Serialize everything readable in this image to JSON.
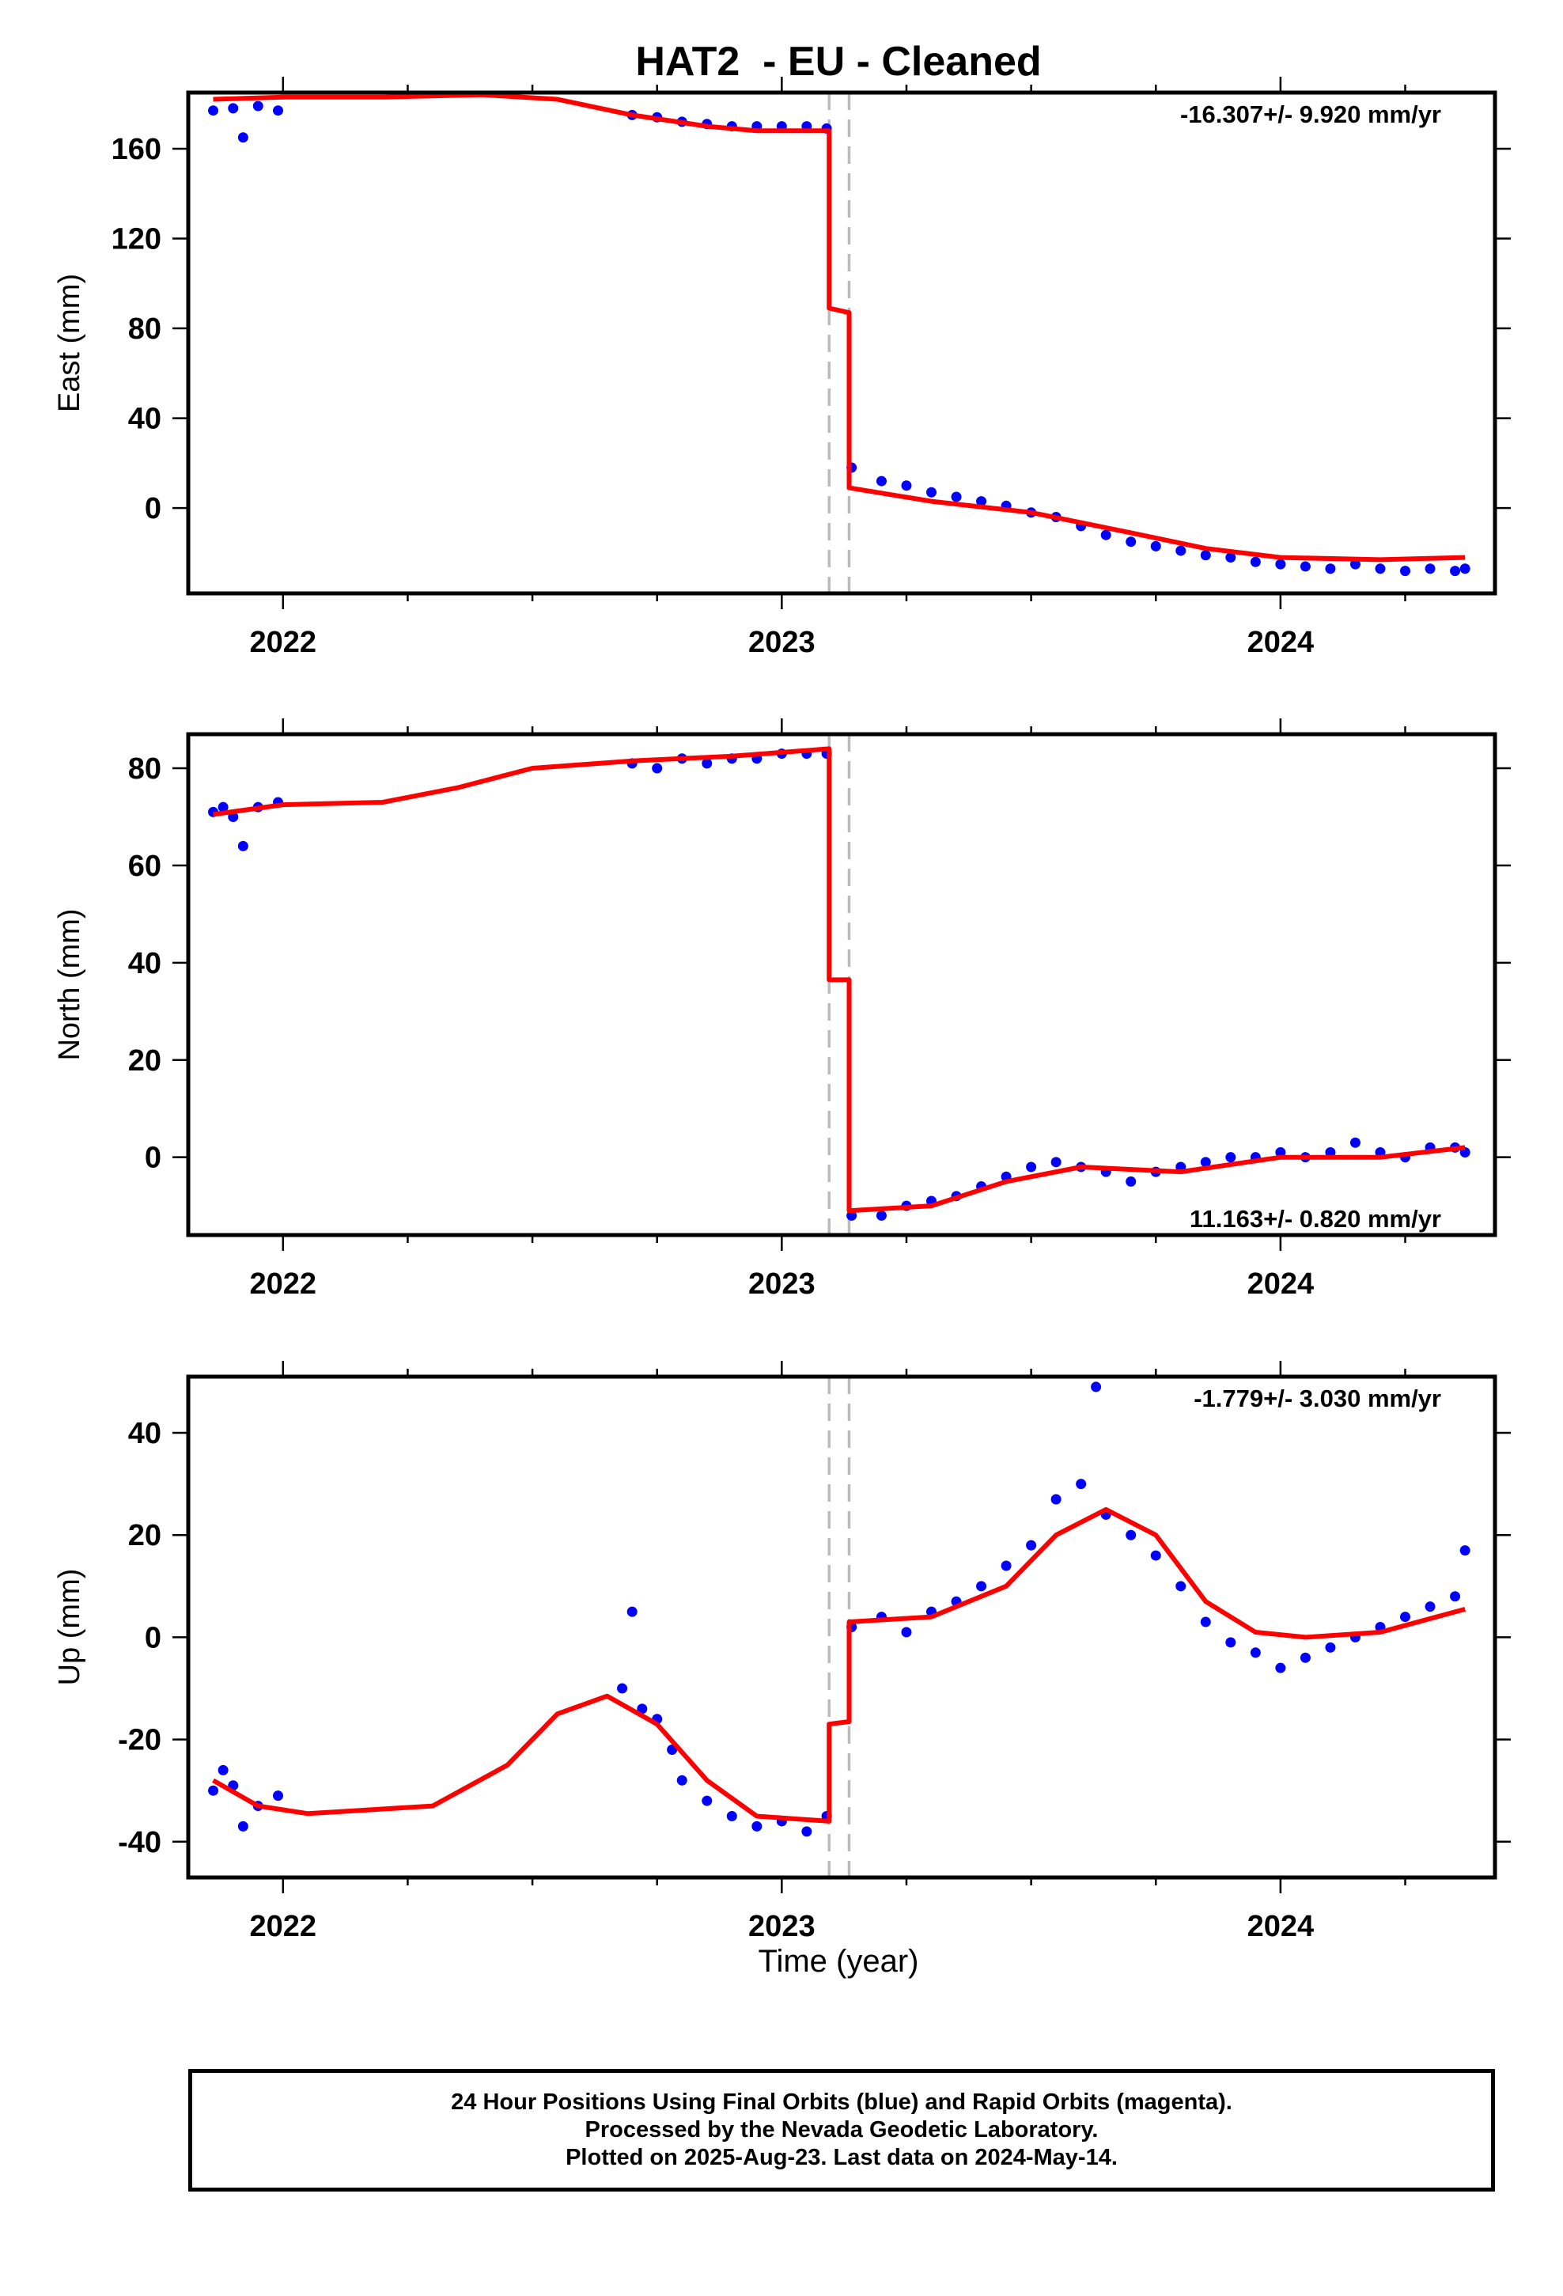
{
  "title": "HAT2  - EU - Cleaned",
  "x_axis_label": "Time (year)",
  "footer": {
    "line1": "24 Hour Positions Using Final Orbits (blue) and Rapid Orbits (magenta).",
    "line2": "Processed by the Nevada Geodetic Laboratory.",
    "line3": "Plotted on 2025-Aug-23. Last data on 2024-May-14."
  },
  "colors": {
    "points": "#0000ff",
    "model": "#ff0000",
    "steps": "#bbbbbb",
    "axes": "#000000"
  },
  "chart_data": [
    {
      "type": "scatter",
      "component": "East",
      "ylabel": "East (mm)",
      "rate_text": "-16.307+/- 9.920 mm/yr",
      "rate_position": "top-right",
      "xlim": [
        2021.81,
        2024.43
      ],
      "ylim": [
        -38,
        185
      ],
      "x_ticks": [
        2022,
        2023,
        2024
      ],
      "y_ticks": [
        0,
        40,
        80,
        120,
        160
      ],
      "step_epochs": [
        2023.095,
        2023.135
      ],
      "grid": false,
      "observations": [
        {
          "x": 2021.86,
          "y": 177
        },
        {
          "x": 2021.9,
          "y": 178
        },
        {
          "x": 2021.92,
          "y": 165
        },
        {
          "x": 2021.95,
          "y": 179
        },
        {
          "x": 2021.99,
          "y": 177
        },
        {
          "x": 2022.7,
          "y": 175
        },
        {
          "x": 2022.75,
          "y": 174
        },
        {
          "x": 2022.8,
          "y": 172
        },
        {
          "x": 2022.85,
          "y": 171
        },
        {
          "x": 2022.9,
          "y": 170
        },
        {
          "x": 2022.95,
          "y": 170
        },
        {
          "x": 2023.0,
          "y": 170
        },
        {
          "x": 2023.05,
          "y": 170
        },
        {
          "x": 2023.09,
          "y": 169
        },
        {
          "x": 2023.14,
          "y": 18
        },
        {
          "x": 2023.2,
          "y": 12
        },
        {
          "x": 2023.25,
          "y": 10
        },
        {
          "x": 2023.3,
          "y": 7
        },
        {
          "x": 2023.35,
          "y": 5
        },
        {
          "x": 2023.4,
          "y": 3
        },
        {
          "x": 2023.45,
          "y": 1
        },
        {
          "x": 2023.5,
          "y": -2
        },
        {
          "x": 2023.55,
          "y": -4
        },
        {
          "x": 2023.6,
          "y": -8
        },
        {
          "x": 2023.65,
          "y": -12
        },
        {
          "x": 2023.7,
          "y": -15
        },
        {
          "x": 2023.75,
          "y": -17
        },
        {
          "x": 2023.8,
          "y": -19
        },
        {
          "x": 2023.85,
          "y": -21
        },
        {
          "x": 2023.9,
          "y": -22
        },
        {
          "x": 2023.95,
          "y": -24
        },
        {
          "x": 2024.0,
          "y": -25
        },
        {
          "x": 2024.05,
          "y": -26
        },
        {
          "x": 2024.1,
          "y": -27
        },
        {
          "x": 2024.15,
          "y": -25
        },
        {
          "x": 2024.2,
          "y": -27
        },
        {
          "x": 2024.25,
          "y": -28
        },
        {
          "x": 2024.3,
          "y": -27
        },
        {
          "x": 2024.35,
          "y": -28
        },
        {
          "x": 2024.37,
          "y": -27
        }
      ],
      "model": [
        {
          "x": 2021.86,
          "y": 182
        },
        {
          "x": 2022.0,
          "y": 183
        },
        {
          "x": 2022.2,
          "y": 183
        },
        {
          "x": 2022.4,
          "y": 184
        },
        {
          "x": 2022.55,
          "y": 182
        },
        {
          "x": 2022.7,
          "y": 175
        },
        {
          "x": 2022.85,
          "y": 170
        },
        {
          "x": 2022.95,
          "y": 168
        },
        {
          "x": 2023.095,
          "y": 168
        },
        {
          "x": 2023.095,
          "y": 89
        },
        {
          "x": 2023.135,
          "y": 87
        },
        {
          "x": 2023.135,
          "y": 9
        },
        {
          "x": 2023.3,
          "y": 3
        },
        {
          "x": 2023.5,
          "y": -2
        },
        {
          "x": 2023.7,
          "y": -11
        },
        {
          "x": 2023.85,
          "y": -18
        },
        {
          "x": 2024.0,
          "y": -22
        },
        {
          "x": 2024.2,
          "y": -23
        },
        {
          "x": 2024.37,
          "y": -22
        }
      ]
    },
    {
      "type": "scatter",
      "component": "North",
      "ylabel": "North (mm)",
      "rate_text": "11.163+/- 0.820 mm/yr",
      "rate_position": "bottom-right",
      "xlim": [
        2021.81,
        2024.43
      ],
      "ylim": [
        -16,
        87
      ],
      "x_ticks": [
        2022,
        2023,
        2024
      ],
      "y_ticks": [
        0,
        20,
        40,
        60,
        80
      ],
      "step_epochs": [
        2023.095,
        2023.135
      ],
      "grid": false,
      "observations": [
        {
          "x": 2021.86,
          "y": 71
        },
        {
          "x": 2021.88,
          "y": 72
        },
        {
          "x": 2021.9,
          "y": 70
        },
        {
          "x": 2021.92,
          "y": 64
        },
        {
          "x": 2021.95,
          "y": 72
        },
        {
          "x": 2021.99,
          "y": 73
        },
        {
          "x": 2022.7,
          "y": 81
        },
        {
          "x": 2022.75,
          "y": 80
        },
        {
          "x": 2022.8,
          "y": 82
        },
        {
          "x": 2022.85,
          "y": 81
        },
        {
          "x": 2022.9,
          "y": 82
        },
        {
          "x": 2022.95,
          "y": 82
        },
        {
          "x": 2023.0,
          "y": 83
        },
        {
          "x": 2023.05,
          "y": 83
        },
        {
          "x": 2023.09,
          "y": 83
        },
        {
          "x": 2023.14,
          "y": -12
        },
        {
          "x": 2023.2,
          "y": -12
        },
        {
          "x": 2023.25,
          "y": -10
        },
        {
          "x": 2023.3,
          "y": -9
        },
        {
          "x": 2023.35,
          "y": -8
        },
        {
          "x": 2023.4,
          "y": -6
        },
        {
          "x": 2023.45,
          "y": -4
        },
        {
          "x": 2023.5,
          "y": -2
        },
        {
          "x": 2023.55,
          "y": -1
        },
        {
          "x": 2023.6,
          "y": -2
        },
        {
          "x": 2023.65,
          "y": -3
        },
        {
          "x": 2023.7,
          "y": -5
        },
        {
          "x": 2023.75,
          "y": -3
        },
        {
          "x": 2023.8,
          "y": -2
        },
        {
          "x": 2023.85,
          "y": -1
        },
        {
          "x": 2023.9,
          "y": 0
        },
        {
          "x": 2023.95,
          "y": 0
        },
        {
          "x": 2024.0,
          "y": 1
        },
        {
          "x": 2024.05,
          "y": 0
        },
        {
          "x": 2024.1,
          "y": 1
        },
        {
          "x": 2024.15,
          "y": 3
        },
        {
          "x": 2024.2,
          "y": 1
        },
        {
          "x": 2024.25,
          "y": 0
        },
        {
          "x": 2024.3,
          "y": 2
        },
        {
          "x": 2024.35,
          "y": 2
        },
        {
          "x": 2024.37,
          "y": 1
        }
      ],
      "model": [
        {
          "x": 2021.86,
          "y": 70.5
        },
        {
          "x": 2022.0,
          "y": 72.5
        },
        {
          "x": 2022.2,
          "y": 73
        },
        {
          "x": 2022.35,
          "y": 76
        },
        {
          "x": 2022.5,
          "y": 80
        },
        {
          "x": 2022.7,
          "y": 81.5
        },
        {
          "x": 2022.9,
          "y": 82.5
        },
        {
          "x": 2023.095,
          "y": 84
        },
        {
          "x": 2023.095,
          "y": 36.5
        },
        {
          "x": 2023.135,
          "y": 36.5
        },
        {
          "x": 2023.135,
          "y": -11
        },
        {
          "x": 2023.3,
          "y": -10
        },
        {
          "x": 2023.45,
          "y": -5
        },
        {
          "x": 2023.6,
          "y": -2
        },
        {
          "x": 2023.8,
          "y": -3
        },
        {
          "x": 2024.0,
          "y": 0
        },
        {
          "x": 2024.2,
          "y": 0
        },
        {
          "x": 2024.37,
          "y": 2
        }
      ]
    },
    {
      "type": "scatter",
      "component": "Up",
      "ylabel": "Up (mm)",
      "rate_text": "-1.779+/- 3.030 mm/yr",
      "rate_position": "top-right",
      "xlim": [
        2021.81,
        2024.43
      ],
      "ylim": [
        -47,
        51
      ],
      "x_ticks": [
        2022,
        2023,
        2024
      ],
      "y_ticks": [
        -40,
        -20,
        0,
        20,
        40
      ],
      "step_epochs": [
        2023.095,
        2023.135
      ],
      "grid": false,
      "observations": [
        {
          "x": 2021.86,
          "y": -30
        },
        {
          "x": 2021.88,
          "y": -26
        },
        {
          "x": 2021.9,
          "y": -29
        },
        {
          "x": 2021.92,
          "y": -37
        },
        {
          "x": 2021.95,
          "y": -33
        },
        {
          "x": 2021.99,
          "y": -31
        },
        {
          "x": 2022.68,
          "y": -10
        },
        {
          "x": 2022.7,
          "y": 5
        },
        {
          "x": 2022.72,
          "y": -14
        },
        {
          "x": 2022.75,
          "y": -16
        },
        {
          "x": 2022.78,
          "y": -22
        },
        {
          "x": 2022.8,
          "y": -28
        },
        {
          "x": 2022.85,
          "y": -32
        },
        {
          "x": 2022.9,
          "y": -35
        },
        {
          "x": 2022.95,
          "y": -37
        },
        {
          "x": 2023.0,
          "y": -36
        },
        {
          "x": 2023.05,
          "y": -38
        },
        {
          "x": 2023.09,
          "y": -35
        },
        {
          "x": 2023.14,
          "y": 2
        },
        {
          "x": 2023.2,
          "y": 4
        },
        {
          "x": 2023.25,
          "y": 1
        },
        {
          "x": 2023.3,
          "y": 5
        },
        {
          "x": 2023.35,
          "y": 7
        },
        {
          "x": 2023.4,
          "y": 10
        },
        {
          "x": 2023.45,
          "y": 14
        },
        {
          "x": 2023.5,
          "y": 18
        },
        {
          "x": 2023.55,
          "y": 27
        },
        {
          "x": 2023.6,
          "y": 30
        },
        {
          "x": 2023.63,
          "y": 49
        },
        {
          "x": 2023.65,
          "y": 24
        },
        {
          "x": 2023.7,
          "y": 20
        },
        {
          "x": 2023.75,
          "y": 16
        },
        {
          "x": 2023.8,
          "y": 10
        },
        {
          "x": 2023.85,
          "y": 3
        },
        {
          "x": 2023.9,
          "y": -1
        },
        {
          "x": 2023.95,
          "y": -3
        },
        {
          "x": 2024.0,
          "y": -6
        },
        {
          "x": 2024.05,
          "y": -4
        },
        {
          "x": 2024.1,
          "y": -2
        },
        {
          "x": 2024.15,
          "y": 0
        },
        {
          "x": 2024.2,
          "y": 2
        },
        {
          "x": 2024.25,
          "y": 4
        },
        {
          "x": 2024.3,
          "y": 6
        },
        {
          "x": 2024.35,
          "y": 8
        },
        {
          "x": 2024.37,
          "y": 17
        }
      ],
      "model": [
        {
          "x": 2021.86,
          "y": -28
        },
        {
          "x": 2021.95,
          "y": -33
        },
        {
          "x": 2022.05,
          "y": -34.5
        },
        {
          "x": 2022.3,
          "y": -33
        },
        {
          "x": 2022.45,
          "y": -25
        },
        {
          "x": 2022.55,
          "y": -15
        },
        {
          "x": 2022.65,
          "y": -11.5
        },
        {
          "x": 2022.75,
          "y": -17
        },
        {
          "x": 2022.85,
          "y": -28
        },
        {
          "x": 2022.95,
          "y": -35
        },
        {
          "x": 2023.095,
          "y": -36
        },
        {
          "x": 2023.095,
          "y": -17
        },
        {
          "x": 2023.135,
          "y": -16.5
        },
        {
          "x": 2023.135,
          "y": 3
        },
        {
          "x": 2023.3,
          "y": 4
        },
        {
          "x": 2023.45,
          "y": 10
        },
        {
          "x": 2023.55,
          "y": 20
        },
        {
          "x": 2023.65,
          "y": 25
        },
        {
          "x": 2023.75,
          "y": 20
        },
        {
          "x": 2023.85,
          "y": 7
        },
        {
          "x": 2023.95,
          "y": 1
        },
        {
          "x": 2024.05,
          "y": 0
        },
        {
          "x": 2024.2,
          "y": 1
        },
        {
          "x": 2024.37,
          "y": 5.5
        }
      ]
    }
  ]
}
